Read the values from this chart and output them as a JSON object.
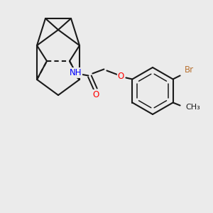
{
  "background_color": "#ebebeb",
  "bond_color": "#1a1a1a",
  "atom_colors": {
    "Br": "#b87333",
    "O": "#ff0000",
    "N": "#0000ff",
    "C": "#1a1a1a"
  },
  "font_size": 8.5,
  "figsize": [
    3.0,
    3.0
  ],
  "dpi": 100,
  "xlim": [
    0,
    300
  ],
  "ylim": [
    0,
    300
  ]
}
